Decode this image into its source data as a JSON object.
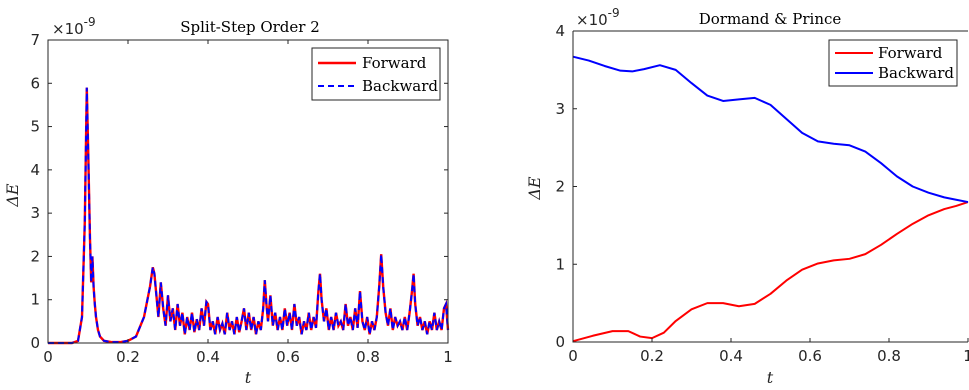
{
  "chart_data": [
    {
      "type": "line",
      "title": "Split-Step Order 2",
      "xlabel": "t",
      "ylabel": "ΔE",
      "exponent_label": "×10",
      "exponent_power": "-9",
      "xlim": [
        0,
        1
      ],
      "ylim": [
        0,
        7
      ],
      "xticks": [
        "0",
        "0.2",
        "0.4",
        "0.6",
        "0.8",
        "1"
      ],
      "xtick_values": [
        0,
        0.2,
        0.4,
        0.6,
        0.8,
        1
      ],
      "yticks": [
        "0",
        "1",
        "2",
        "3",
        "4",
        "5",
        "6",
        "7"
      ],
      "ytick_values": [
        0,
        1,
        2,
        3,
        4,
        5,
        6,
        7
      ],
      "legend_position": "top-right",
      "series": [
        {
          "name": "Forward",
          "color": "#ff0000",
          "style": "solid",
          "x": [
            0,
            0.06,
            0.075,
            0.085,
            0.092,
            0.097,
            0.101,
            0.105,
            0.108,
            0.111,
            0.114,
            0.117,
            0.12,
            0.125,
            0.13,
            0.14,
            0.16,
            0.18,
            0.2,
            0.22,
            0.24,
            0.255,
            0.262,
            0.266,
            0.27,
            0.276,
            0.282,
            0.288,
            0.294,
            0.3,
            0.306,
            0.312,
            0.318,
            0.324,
            0.33,
            0.336,
            0.342,
            0.348,
            0.354,
            0.36,
            0.366,
            0.372,
            0.378,
            0.384,
            0.39,
            0.396,
            0.4,
            0.406,
            0.412,
            0.418,
            0.424,
            0.43,
            0.436,
            0.442,
            0.448,
            0.454,
            0.46,
            0.466,
            0.472,
            0.478,
            0.484,
            0.49,
            0.496,
            0.502,
            0.508,
            0.514,
            0.52,
            0.526,
            0.532,
            0.538,
            0.542,
            0.546,
            0.55,
            0.556,
            0.562,
            0.568,
            0.574,
            0.58,
            0.586,
            0.592,
            0.598,
            0.604,
            0.61,
            0.616,
            0.622,
            0.628,
            0.634,
            0.64,
            0.646,
            0.652,
            0.658,
            0.664,
            0.67,
            0.676,
            0.68,
            0.684,
            0.69,
            0.696,
            0.702,
            0.708,
            0.714,
            0.72,
            0.726,
            0.732,
            0.738,
            0.744,
            0.75,
            0.756,
            0.762,
            0.768,
            0.774,
            0.78,
            0.786,
            0.792,
            0.798,
            0.804,
            0.81,
            0.816,
            0.822,
            0.828,
            0.833,
            0.838,
            0.844,
            0.85,
            0.856,
            0.862,
            0.868,
            0.874,
            0.88,
            0.886,
            0.892,
            0.898,
            0.904,
            0.91,
            0.914,
            0.918,
            0.924,
            0.93,
            0.936,
            0.942,
            0.948,
            0.954,
            0.96,
            0.966,
            0.972,
            0.978,
            0.984,
            0.99,
            0.995,
            1.0
          ],
          "y": [
            0,
            0,
            0.05,
            0.6,
            2.8,
            5.9,
            4.2,
            2.4,
            1.4,
            2.0,
            1.3,
            0.9,
            0.6,
            0.3,
            0.15,
            0.05,
            0.02,
            0.02,
            0.05,
            0.15,
            0.6,
            1.3,
            1.75,
            1.6,
            1.2,
            0.6,
            1.4,
            0.8,
            0.4,
            1.1,
            0.5,
            0.8,
            0.3,
            0.9,
            0.4,
            0.7,
            0.2,
            0.6,
            0.3,
            0.7,
            0.25,
            0.55,
            0.3,
            0.8,
            0.4,
            0.95,
            0.9,
            0.3,
            0.5,
            0.2,
            0.6,
            0.3,
            0.45,
            0.2,
            0.7,
            0.3,
            0.5,
            0.2,
            0.6,
            0.25,
            0.5,
            0.8,
            0.3,
            0.7,
            0.3,
            0.6,
            0.2,
            0.5,
            0.3,
            0.8,
            1.45,
            0.9,
            0.5,
            1.1,
            0.4,
            0.7,
            0.3,
            0.6,
            0.3,
            0.8,
            0.4,
            0.7,
            0.3,
            0.9,
            0.4,
            0.6,
            0.2,
            0.5,
            0.3,
            0.7,
            0.3,
            0.6,
            0.35,
            1.2,
            1.6,
            1.0,
            0.5,
            0.8,
            0.3,
            0.6,
            0.3,
            0.7,
            0.4,
            0.5,
            0.3,
            0.9,
            0.4,
            0.6,
            0.3,
            0.8,
            0.35,
            1.2,
            0.5,
            0.3,
            0.6,
            0.2,
            0.5,
            0.3,
            0.6,
            1.3,
            2.05,
            1.3,
            0.7,
            0.4,
            0.8,
            0.3,
            0.6,
            0.4,
            0.5,
            0.3,
            0.6,
            0.3,
            0.7,
            1.2,
            1.6,
            0.9,
            0.4,
            0.6,
            0.3,
            0.5,
            0.2,
            0.5,
            0.3,
            0.7,
            0.3,
            0.5,
            0.3,
            0.8,
            0.9,
            0.3
          ]
        },
        {
          "name": "Backward",
          "color": "#0000ff",
          "style": "dashed",
          "same_as": "Forward"
        }
      ]
    },
    {
      "type": "line",
      "title": "Dormand & Prince",
      "xlabel": "t",
      "ylabel": "ΔE",
      "exponent_label": "×10",
      "exponent_power": "-9",
      "xlim": [
        0,
        1
      ],
      "ylim": [
        0,
        4
      ],
      "xticks": [
        "0",
        "0.2",
        "0.4",
        "0.6",
        "0.8",
        "1"
      ],
      "xtick_values": [
        0,
        0.2,
        0.4,
        0.6,
        0.8,
        1
      ],
      "yticks": [
        "0",
        "1",
        "2",
        "3",
        "4"
      ],
      "ytick_values": [
        0,
        1,
        2,
        3,
        4
      ],
      "legend_position": "top-right",
      "series": [
        {
          "name": "Forward",
          "color": "#ff0000",
          "style": "solid",
          "x": [
            0,
            0.05,
            0.1,
            0.14,
            0.17,
            0.2,
            0.23,
            0.26,
            0.3,
            0.34,
            0.38,
            0.42,
            0.46,
            0.5,
            0.54,
            0.58,
            0.62,
            0.66,
            0.7,
            0.74,
            0.78,
            0.82,
            0.86,
            0.9,
            0.94,
            0.97,
            1.0
          ],
          "y": [
            0.01,
            0.08,
            0.14,
            0.14,
            0.07,
            0.05,
            0.12,
            0.27,
            0.42,
            0.5,
            0.5,
            0.46,
            0.49,
            0.62,
            0.79,
            0.93,
            1.01,
            1.05,
            1.07,
            1.13,
            1.25,
            1.39,
            1.52,
            1.63,
            1.71,
            1.75,
            1.8
          ]
        },
        {
          "name": "Backward",
          "color": "#0000ff",
          "style": "solid",
          "x": [
            0,
            0.04,
            0.08,
            0.12,
            0.15,
            0.18,
            0.22,
            0.26,
            0.3,
            0.34,
            0.38,
            0.42,
            0.46,
            0.5,
            0.54,
            0.58,
            0.62,
            0.66,
            0.7,
            0.74,
            0.78,
            0.82,
            0.86,
            0.9,
            0.94,
            0.97,
            1.0
          ],
          "y": [
            3.67,
            3.62,
            3.55,
            3.49,
            3.48,
            3.51,
            3.56,
            3.5,
            3.33,
            3.17,
            3.1,
            3.12,
            3.14,
            3.05,
            2.87,
            2.69,
            2.58,
            2.55,
            2.53,
            2.45,
            2.3,
            2.13,
            2.0,
            1.92,
            1.86,
            1.83,
            1.8
          ]
        }
      ]
    }
  ]
}
